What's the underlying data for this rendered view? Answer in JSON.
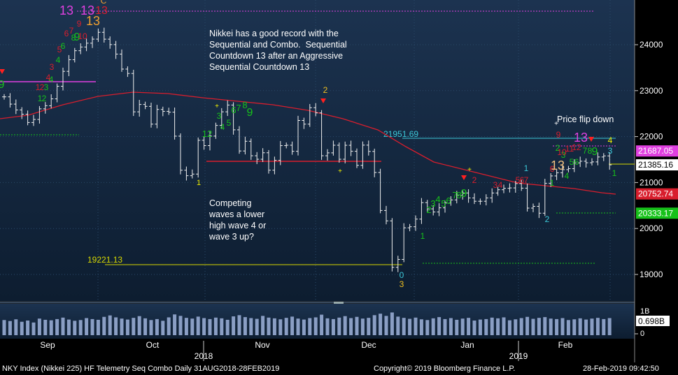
{
  "chart_data": {
    "type": "candlestick",
    "title": "NKY Index (Nikkei 225) HF Telemetry Seq Combo  Daily 31AUG2018-28FEB2019",
    "copyright": "Copyright© 2019 Bloomberg Finance L.P.",
    "timestamp": "28-Feb-2019 09:42:50",
    "y_ticks": [
      "24000",
      "23000",
      "22000",
      "21000",
      "20000",
      "19000"
    ],
    "y_tick_values": [
      24000,
      23000,
      22000,
      21000,
      20000,
      19000
    ],
    "ylim": [
      18570,
      25000
    ],
    "x_month_labels": [
      "Sep",
      "Oct",
      "Nov",
      "Dec",
      "Jan",
      "Feb"
    ],
    "x_year_labels": [
      "2018",
      "2019"
    ],
    "price_badges": [
      {
        "text": "21687.05",
        "value": 21687.05,
        "color": "#e040e0"
      },
      {
        "text": "21385.16",
        "value": 21385.16,
        "color": "#ffffff"
      },
      {
        "text": "20752.74",
        "value": 20752.74,
        "color": "#d81e2d"
      },
      {
        "text": "20333.17",
        "value": 20333.17,
        "color": "#17c21a"
      }
    ],
    "volume_badge": "0.698B",
    "volume_ticks": [
      "1B",
      "0"
    ],
    "hlines": [
      {
        "label": "21951.69",
        "value": 21951.69,
        "color": "#3cc8d8"
      },
      {
        "label": "19221.13",
        "value": 19221.13,
        "color": "#d8d800"
      }
    ],
    "annotations": [
      "Nikkei has a good record with the\nSequential and Combo.  Sequential\nCountdown 13 after an Aggressive\nSequential Countdown 13",
      "Price flip down",
      "Competing\nwaves a lower\nhigh wave 4 or\nwave 3 up?"
    ],
    "closes": [
      22865,
      22707,
      22580,
      22487,
      22307,
      22373,
      22604,
      22672,
      22821,
      23095,
      23420,
      23674,
      23869,
      23950,
      24033,
      24121,
      24270,
      24120,
      24002,
      23796,
      23469,
      23374,
      22539,
      22699,
      22658,
      22271,
      22591,
      22549,
      22532,
      22010,
      21268,
      21149,
      21184,
      21920,
      21804,
      22011,
      22243,
      22539,
      22687,
      22147,
      21687,
      21898,
      21583,
      21507,
      21648,
      21269,
      21484,
      21804,
      21812,
      21680,
      22351,
      22271,
      22629,
      22516,
      21583,
      21646,
      21812,
      21507,
      21811,
      21681,
      21374,
      21814,
      21677,
      21219,
      20392,
      20166,
      19155,
      19327,
      20015,
      20038,
      20204,
      20563,
      20427,
      20359,
      20450,
      20555,
      20622,
      20719,
      20773,
      20665,
      20593,
      20593,
      20665,
      20773,
      20844,
      20874,
      20883,
      20977,
      20878,
      20444,
      20482,
      20333,
      20981,
      21144,
      21213,
      21281,
      21302,
      21428,
      21464,
      21431,
      21449,
      21556,
      21580,
      21385
    ],
    "volume_bars": [
      0.62,
      0.58,
      0.65,
      0.55,
      0.6,
      0.52,
      0.68,
      0.63,
      0.61,
      0.66,
      0.72,
      0.64,
      0.59,
      0.62,
      0.7,
      0.66,
      0.63,
      0.75,
      0.81,
      0.73,
      0.68,
      0.64,
      0.71,
      0.78,
      0.69,
      0.62,
      0.66,
      0.59,
      0.73,
      0.85,
      0.79,
      0.71,
      0.68,
      0.76,
      0.7,
      0.66,
      0.72,
      0.69,
      0.63,
      0.77,
      0.82,
      0.74,
      0.7,
      0.67,
      0.79,
      0.72,
      0.69,
      0.65,
      0.71,
      0.76,
      0.68,
      0.64,
      0.7,
      0.73,
      0.84,
      0.69,
      0.66,
      0.72,
      0.78,
      0.7,
      0.75,
      0.68,
      0.71,
      0.82,
      0.88,
      0.79,
      0.93,
      0.76,
      0.71,
      0.67,
      0.72,
      0.65,
      0.62,
      0.69,
      0.74,
      0.66,
      0.7,
      0.63,
      0.68,
      0.71,
      0.6,
      0.64,
      0.66,
      0.72,
      0.69,
      0.73,
      0.61,
      0.65,
      0.7,
      0.75,
      0.67,
      0.71,
      0.74,
      0.68,
      0.66,
      0.7,
      0.62,
      0.65,
      0.69,
      0.64,
      0.68,
      0.71,
      0.66,
      0.7
    ]
  }
}
